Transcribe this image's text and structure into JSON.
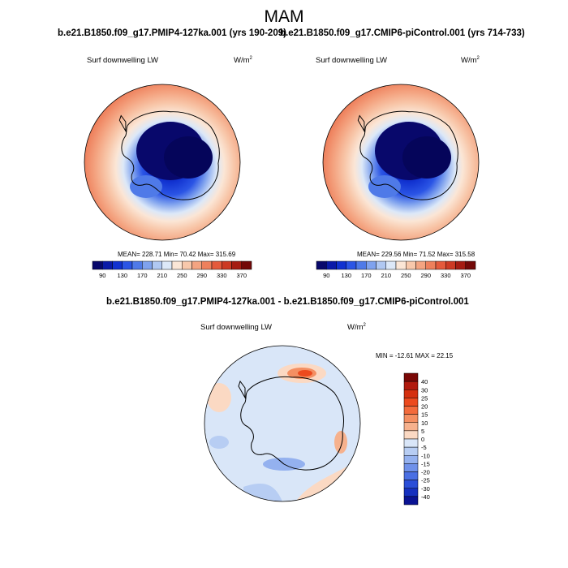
{
  "title": "MAM",
  "panels": [
    {
      "title": "b.e21.B1850.f09_g17.PMIP4-127ka.001 (yrs 190-209)",
      "variable": "Surf downwelling LW",
      "units": "W/m",
      "units_sup": "2",
      "stats": "MEAN= 228.71  Min= 70.42  Max= 315.69"
    },
    {
      "title": "b.e21.B1850.f09_g17.CMIP6-piControl.001 (yrs 714-733)",
      "variable": "Surf downwelling LW",
      "units": "W/m",
      "units_sup": "2",
      "stats": "MEAN= 229.56  Min= 71.52  Max= 315.58"
    }
  ],
  "abs_colorbar": {
    "labels": [
      "90",
      "130",
      "170",
      "210",
      "250",
      "290",
      "330",
      "370"
    ],
    "colors": [
      "#08086b",
      "#0a1aa8",
      "#1132d0",
      "#2b55e5",
      "#4f7ae8",
      "#7fa2ee",
      "#b0c8f2",
      "#dce8f8",
      "#fbe6d6",
      "#f8c8ab",
      "#f4a481",
      "#ee805c",
      "#e45a3c",
      "#cc3a24",
      "#a51c12",
      "#730908"
    ]
  },
  "diff": {
    "title": "b.e21.B1850.f09_g17.PMIP4-127ka.001 - b.e21.B1850.f09_g17.CMIP6-piControl.001",
    "variable": "Surf downwelling LW",
    "units": "W/m",
    "units_sup": "2",
    "stats": "MIN = -12.61 MAX =  22.15",
    "colorbar_labels": [
      "40",
      "30",
      "25",
      "20",
      "15",
      "10",
      "5",
      "0",
      "-5",
      "-10",
      "-15",
      "-20",
      "-25",
      "-30",
      "-40"
    ],
    "colorbar_colors": [
      "#7a0806",
      "#b11a0e",
      "#d5300f",
      "#ec4a1e",
      "#f36b3c",
      "#f48f62",
      "#f6b18d",
      "#fbd9c3",
      "#d9e6f8",
      "#b7cdf3",
      "#94b1ef",
      "#6f91ea",
      "#4a6fe3",
      "#2a4ed8",
      "#1530bf",
      "#0a1393"
    ]
  }
}
